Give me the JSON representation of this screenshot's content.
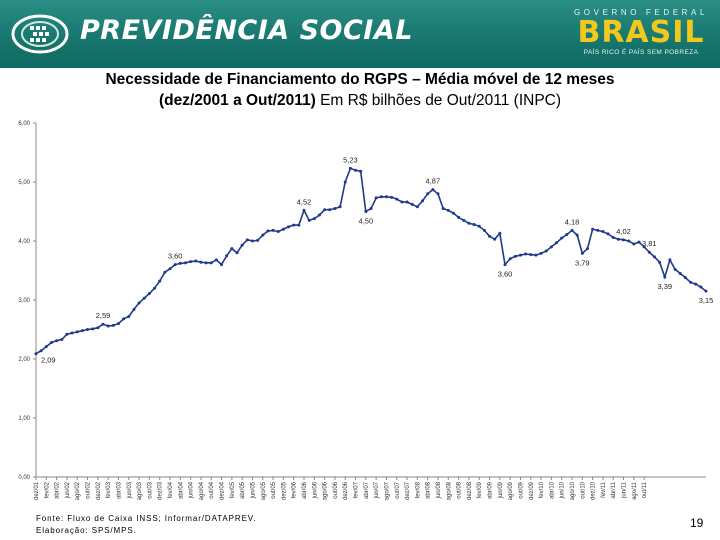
{
  "header": {
    "brand_name": "PREVIDÊNCIA SOCIAL",
    "gov_top": "GOVERNO FEDERAL",
    "gov_main": "BRASIL",
    "gov_slogan": "PAÍS RICO É PAÍS SEM POBREZA",
    "colors": {
      "band": "#17756d",
      "gov_main": "#f2c81c"
    },
    "icons": [
      "previdencia-logo-icon"
    ]
  },
  "title": {
    "line1": "Necessidade de Financiamento do RGPS – Média móvel de 12 meses",
    "line2_bold": "(dez/2001 a Out/2011)",
    "line2_rest": " Em R$ bilhões de Out/2011 (INPC)"
  },
  "footer": {
    "source": "Fonte: Fluxo de Caixa INSS; Informar/DATAPREV.",
    "elaboration": "Elaboração: SPS/MPS.",
    "page_number": "19"
  },
  "chart_data": {
    "type": "line",
    "title": "Necessidade de Financiamento do RGPS – Média móvel de 12 meses (dez/2001 a Out/2011) Em R$ bilhões de Out/2011 (INPC)",
    "ylim": [
      0,
      6
    ],
    "yticks": [
      "0,00",
      "1,00",
      "2,00",
      "3,00",
      "4,00",
      "5,00",
      "6,00"
    ],
    "grid": false,
    "line_color": "#1f3a8a",
    "x_labels": [
      "dez/01",
      "fev/02",
      "abr/02",
      "jun/02",
      "ago/02",
      "out/02",
      "dez/02",
      "fev/03",
      "abr/03",
      "jun/03",
      "ago/03",
      "out/03",
      "dez/03",
      "fev/04",
      "abr/04",
      "jun/04",
      "ago/04",
      "out/04",
      "dez/04",
      "fev/05",
      "abr/05",
      "jun/05",
      "ago/05",
      "out/05",
      "dez/05",
      "fev/06",
      "abr/06",
      "jun/06",
      "ago/06",
      "out/06",
      "dez/06",
      "fev/07",
      "abr/07",
      "jun/07",
      "ago/07",
      "out/07",
      "dez/07",
      "fev/08",
      "abr/08",
      "jun/08",
      "ago/08",
      "out/08",
      "dez/08",
      "fev/09",
      "abr/09",
      "jun/09",
      "ago/09",
      "out/09",
      "dez/09",
      "fev/10",
      "abr/10",
      "jun/10",
      "ago/10",
      "out/10",
      "dez/10",
      "fev/11",
      "abr/11",
      "jun/11",
      "ago/11",
      "out/11"
    ],
    "series": [
      {
        "values": [
          2.09,
          2.14,
          2.21,
          2.28,
          2.31,
          2.33,
          2.42,
          2.44,
          2.46,
          2.48,
          2.5,
          2.51,
          2.53,
          2.59,
          2.56,
          2.57,
          2.6,
          2.68,
          2.72,
          2.84,
          2.95,
          3.03,
          3.11,
          3.2,
          3.32,
          3.47,
          3.53,
          3.6,
          3.62,
          3.63,
          3.65,
          3.66,
          3.64,
          3.63,
          3.63,
          3.68,
          3.6,
          3.75,
          3.87,
          3.8,
          3.93,
          4.02,
          4.0,
          4.01,
          4.1,
          4.17,
          4.18,
          4.16,
          4.2,
          4.24,
          4.27,
          4.27,
          4.52,
          4.35,
          4.38,
          4.44,
          4.53,
          4.53,
          4.55,
          4.58,
          5.0,
          5.23,
          5.2,
          5.18,
          4.5,
          4.55,
          4.73,
          4.75,
          4.75,
          4.74,
          4.71,
          4.66,
          4.66,
          4.62,
          4.58,
          4.68,
          4.8,
          4.87,
          4.8,
          4.55,
          4.52,
          4.47,
          4.4,
          4.35,
          4.3,
          4.28,
          4.25,
          4.18,
          4.08,
          4.03,
          4.13,
          3.6,
          3.7,
          3.74,
          3.76,
          3.78,
          3.77,
          3.76,
          3.79,
          3.83,
          3.9,
          3.97,
          4.05,
          4.11,
          4.18,
          4.1,
          3.79,
          3.87,
          4.2,
          4.18,
          4.16,
          4.12,
          4.06,
          4.03,
          4.02,
          4.0,
          3.95,
          3.98,
          3.9,
          3.81,
          3.73,
          3.64,
          3.39,
          3.68,
          3.52,
          3.45,
          3.38,
          3.3,
          3.27,
          3.22,
          3.15
        ]
      }
    ],
    "annotations": [
      {
        "index": 0,
        "value": 2.09,
        "label": "2,09",
        "pos": "below-right"
      },
      {
        "index": 13,
        "value": 2.59,
        "label": "2,59",
        "pos": "above"
      },
      {
        "index": 27,
        "value": 3.6,
        "label": "3,60",
        "pos": "above"
      },
      {
        "index": 52,
        "value": 4.52,
        "label": "4,52",
        "pos": "above"
      },
      {
        "index": 61,
        "value": 5.23,
        "label": "5,23",
        "pos": "above"
      },
      {
        "index": 64,
        "value": 4.5,
        "label": "4,50",
        "pos": "below"
      },
      {
        "index": 77,
        "value": 4.87,
        "label": "4,87",
        "pos": "above"
      },
      {
        "index": 91,
        "value": 3.6,
        "label": "3,60",
        "pos": "below"
      },
      {
        "index": 104,
        "value": 4.18,
        "label": "4,18",
        "pos": "above"
      },
      {
        "index": 106,
        "value": 3.79,
        "label": "3,79",
        "pos": "below"
      },
      {
        "index": 114,
        "value": 4.02,
        "label": "4,02",
        "pos": "above"
      },
      {
        "index": 119,
        "value": 3.81,
        "label": "3,81",
        "pos": "above"
      },
      {
        "index": 122,
        "value": 3.39,
        "label": "3,39",
        "pos": "below"
      },
      {
        "index": 130,
        "value": 3.15,
        "label": "3,15",
        "pos": "below"
      }
    ]
  }
}
